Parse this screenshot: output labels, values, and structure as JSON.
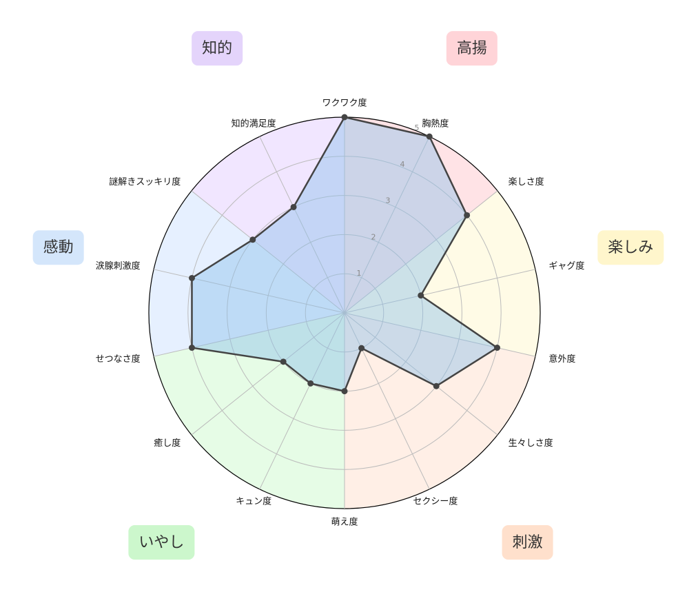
{
  "chart_data": {
    "type": "radar",
    "categories": [
      "ワクワク度",
      "胸熱度",
      "楽しさ度",
      "ギャグ度",
      "意外度",
      "生々しさ度",
      "セクシー度",
      "萌え度",
      "キュン度",
      "癒し度",
      "せつなさ度",
      "涙腺刺激度",
      "謎解きスッキリ度",
      "知的満足度"
    ],
    "values": [
      5,
      5,
      4,
      2,
      4,
      3,
      1,
      2,
      2,
      2,
      4,
      4,
      3,
      3
    ],
    "rlim": [
      0,
      5
    ],
    "rticks": [
      1,
      2,
      3,
      4,
      5
    ],
    "color": "#444444",
    "fill": "#8fc0ea",
    "groups": [
      {
        "name": "高揚",
        "from": "ワクワク度",
        "to": "楽しさ度",
        "color": "#ffe3e6",
        "label_color": "#ffd4d8"
      },
      {
        "name": "楽しみ",
        "from": "楽しさ度",
        "to": "意外度",
        "color": "#fffbe6",
        "label_color": "#fff6cc"
      },
      {
        "name": "刺激",
        "from": "意外度",
        "to": "萌え度",
        "color": "#ffefe6",
        "label_color": "#ffe0cc"
      },
      {
        "name": "いやし",
        "from": "萌え度",
        "to": "せつなさ度",
        "color": "#e6fce6",
        "label_color": "#ccf7cc"
      },
      {
        "name": "感動",
        "from": "せつなさ度",
        "to": "謎解きスッキリ度",
        "color": "#e6f0ff",
        "label_color": "#d4e6fb"
      },
      {
        "name": "知的",
        "from": "謎解きスッキリ度",
        "to": "ワクワク度",
        "color": "#f1e6ff",
        "label_color": "#e4d4fb"
      }
    ]
  }
}
